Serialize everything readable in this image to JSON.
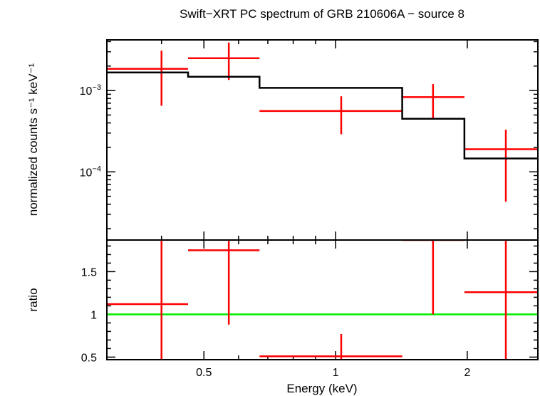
{
  "chart_data": {
    "type": "scatter",
    "title": "Swift−XRT PC spectrum of GRB 210606A − source 8",
    "xlabel": "Energy (keV)",
    "xscale": "log",
    "xlim": [
      0.3,
      2.9
    ],
    "x_ticks": [
      {
        "value": 0.5,
        "label": "0.5"
      },
      {
        "value": 1,
        "label": "1"
      },
      {
        "value": 2,
        "label": "2"
      }
    ],
    "panels": [
      {
        "id": "spectrum",
        "ylabel": "normalized counts s⁻¹ keV⁻¹",
        "yscale": "log",
        "ylim": [
          1.45e-05,
          0.0042
        ],
        "y_ticks": [
          {
            "value": 0.001,
            "base": "10",
            "exp": "−3"
          },
          {
            "value": 0.0001,
            "base": "10",
            "exp": "−4"
          }
        ],
        "series": [
          {
            "kind": "data",
            "color": "#ff0000",
            "points": [
              {
                "x": 0.4,
                "xlo": 0.3,
                "xhi": 0.46,
                "y": 0.00185,
                "ylo": 0.00065,
                "yhi": 0.0031
              },
              {
                "x": 0.57,
                "xlo": 0.46,
                "xhi": 0.67,
                "y": 0.0025,
                "ylo": 0.00135,
                "yhi": 0.0039
              },
              {
                "x": 1.03,
                "xlo": 0.67,
                "xhi": 1.42,
                "y": 0.00056,
                "ylo": 0.00029,
                "yhi": 0.00085
              },
              {
                "x": 1.67,
                "xlo": 1.42,
                "xhi": 1.97,
                "y": 0.00083,
                "ylo": 0.00045,
                "yhi": 0.0012
              },
              {
                "x": 2.45,
                "xlo": 1.97,
                "xhi": 2.9,
                "y": 0.00019,
                "ylo": 4.3e-05,
                "yhi": 0.00033
              }
            ]
          },
          {
            "kind": "model",
            "color": "#000000",
            "steps": [
              {
                "xlo": 0.3,
                "xhi": 0.46,
                "y": 0.00167
              },
              {
                "xlo": 0.46,
                "xhi": 0.67,
                "y": 0.00148
              },
              {
                "xlo": 0.67,
                "xhi": 1.42,
                "y": 0.00108
              },
              {
                "xlo": 1.42,
                "xhi": 1.97,
                "y": 0.00045
              },
              {
                "xlo": 1.97,
                "xhi": 2.9,
                "y": 0.000146
              }
            ]
          }
        ]
      },
      {
        "id": "ratio",
        "ylabel": "ratio",
        "yscale": "linear",
        "ylim": [
          0.47,
          1.87
        ],
        "y_ticks": [
          {
            "value": 0.5,
            "label": "0.5"
          },
          {
            "value": 1,
            "label": "1"
          },
          {
            "value": 1.5,
            "label": "1.5"
          }
        ],
        "reference_line": {
          "y": 1,
          "color": "#00ee00"
        },
        "series": [
          {
            "kind": "data",
            "color": "#ff0000",
            "points": [
              {
                "x": 0.4,
                "xlo": 0.3,
                "xhi": 0.46,
                "y": 1.12,
                "ylo": 0.47,
                "yhi": 1.87
              },
              {
                "x": 0.57,
                "xlo": 0.46,
                "xhi": 0.67,
                "y": 1.75,
                "ylo": 0.88,
                "yhi": 1.87
              },
              {
                "x": 1.03,
                "xlo": 0.67,
                "xhi": 1.42,
                "y": 0.51,
                "ylo": 0.47,
                "yhi": 0.77
              },
              {
                "x": 1.67,
                "xlo": 1.42,
                "xhi": 1.97,
                "y": 1.87,
                "ylo": 1.0,
                "yhi": 1.87
              },
              {
                "x": 2.45,
                "xlo": 1.97,
                "xhi": 2.9,
                "y": 1.26,
                "ylo": 0.47,
                "yhi": 1.87
              }
            ]
          }
        ]
      }
    ]
  }
}
